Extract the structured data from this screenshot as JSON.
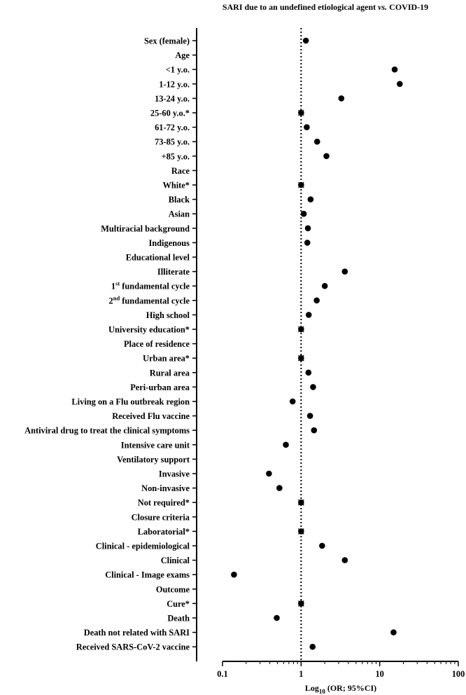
{
  "chart_data": {
    "type": "scatter",
    "title": "SARI due to an undefined etiological agent",
    "title_italic": "vs.",
    "title_end": "COVID-19",
    "xlabel": "Log",
    "xlabel_sub": "10",
    "xlabel_end": " (OR; 95%CI)",
    "x_scale": "log",
    "xlim": [
      0.1,
      100
    ],
    "x_ticks": [
      0.1,
      1,
      10,
      100
    ],
    "x_tick_labels": [
      "0.1",
      "1",
      "10",
      "100"
    ],
    "reference_line": 1,
    "categories": [
      "Sex (female)",
      "Age",
      "<1 y.o.",
      "1-12 y.o.",
      "13-24 y.o.",
      "25-60 y.o.*",
      "61-72 y.o.",
      "73-85 y.o.",
      "+85 y.o.",
      "Race",
      "White*",
      "Black",
      "Asian",
      "Multiracial background",
      "Indigenous",
      "Educational level",
      "Illiterate",
      "1st fundamental cycle",
      "2nd fundamental cycle",
      "High school",
      "University education*",
      "Place of residence",
      "Urban area*",
      "Rural area",
      "Peri-urban area",
      "Living on a Flu outbreak region",
      "Received Flu vaccine",
      "Antiviral drug to treat the clinical symptoms",
      "Intensive care unit",
      "Ventilatory support",
      "Invasive",
      "Non-invasive ",
      "Not required*",
      "Closure criteria",
      "Laboratorial*",
      "Clinical - epidemiological",
      "Clinical",
      "Clinical - Image exams",
      "Outcome",
      "Cure*",
      "Death",
      "Death not related with SARI",
      "Received SARS-CoV-2 vaccine"
    ],
    "category_superscripts": {
      "1st fundamental cycle": [
        "1",
        "st",
        " fundamental cycle"
      ],
      "2nd fundamental cycle": [
        "2",
        "nd",
        " fundamental cycle"
      ]
    },
    "series": [
      {
        "values": [
          1.15,
          null,
          15.5,
          18.0,
          3.25,
          1.0,
          1.18,
          1.6,
          2.1,
          null,
          1.0,
          1.32,
          1.08,
          1.22,
          1.2,
          null,
          3.6,
          2.0,
          1.58,
          1.25,
          1.0,
          null,
          1.0,
          1.24,
          1.42,
          0.78,
          1.3,
          1.46,
          0.64,
          null,
          0.39,
          0.53,
          1.0,
          null,
          1.0,
          1.85,
          3.6,
          0.14,
          null,
          1.0,
          0.49,
          15.0,
          1.4
        ]
      }
    ]
  }
}
